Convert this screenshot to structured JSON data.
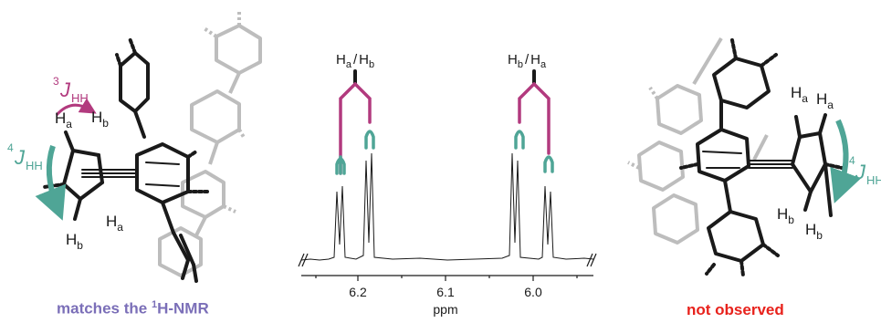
{
  "colors": {
    "coupling_4j": "#4fa596",
    "coupling_3j": "#b23a7e",
    "match_caption": "#7b6fb8",
    "not_observed_caption": "#e8221c",
    "molecule_dark": "#1a1a1a",
    "molecule_faded": "#b8b8b8"
  },
  "left_structure": {
    "j3_label": {
      "sup": "3",
      "main": "J",
      "sub": "HH"
    },
    "j4_label": {
      "sup": "4",
      "main": "J",
      "sub": "HH"
    },
    "h_labels": [
      {
        "main": "H",
        "sub": "a"
      },
      {
        "main": "H",
        "sub": "b"
      },
      {
        "main": "H",
        "sub": "a"
      },
      {
        "main": "H",
        "sub": "b"
      }
    ],
    "caption": {
      "prefix": "matches the ",
      "sup": "1",
      "suffix": "H-NMR"
    }
  },
  "nmr_spectrum": {
    "axis_label": "ppm",
    "ticks": [
      "6.2",
      "6.1",
      "6.0"
    ],
    "peak_labels_left": {
      "first": "H",
      "first_sub": "a",
      "sep": "/",
      "second": "H",
      "second_sub": "b"
    },
    "peak_labels_right": {
      "first": "H",
      "first_sub": "b",
      "sep": "/",
      "second": "H",
      "second_sub": "a"
    }
  },
  "right_structure": {
    "j4_label": {
      "sup": "4",
      "main": "J",
      "sub": "HH"
    },
    "h_labels": [
      {
        "main": "H",
        "sub": "a"
      },
      {
        "main": "H",
        "sub": "a"
      },
      {
        "main": "H",
        "sub": "b"
      },
      {
        "main": "H",
        "sub": "b"
      }
    ],
    "caption": "not observed"
  }
}
